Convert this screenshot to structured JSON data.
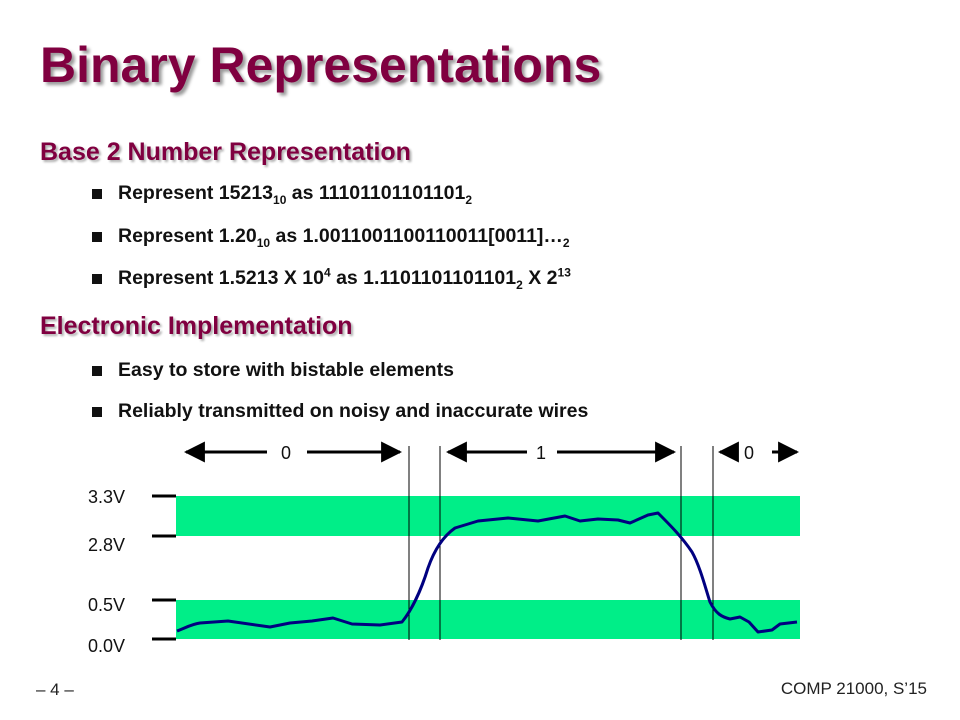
{
  "title": "Binary Representations",
  "sections": [
    {
      "heading": "Base 2 Number Representation",
      "bullets": [
        {
          "parts": {
            "t1": "Represent 15213",
            "s1": "10",
            "t2": " as 11101101101101",
            "s2": "2"
          }
        },
        {
          "parts": {
            "t1": "Represent 1.20",
            "s1": "10",
            "t2": " as 1.0011001100110011[0011]…",
            "s2": "2"
          }
        },
        {
          "parts": {
            "t1": "Represent 1.5213 X 10",
            "p1": "4",
            "t2": "  as 1.1101101101101",
            "s2": "2",
            "t3": " X 2",
            "p2": "13"
          }
        }
      ]
    },
    {
      "heading": "Electronic Implementation",
      "bullets": [
        {
          "text": "Easy to store with bistable elements"
        },
        {
          "text": "Reliably transmitted on noisy and inaccurate wires"
        }
      ]
    }
  ],
  "diagram": {
    "voltage_labels": [
      "3.3V",
      "2.8V",
      "0.5V",
      "0.0V"
    ],
    "bit_labels": [
      "0",
      "1",
      "0"
    ],
    "band_color": "#00ee88",
    "line_color": "#000080"
  },
  "footer": {
    "page": "– 4 –",
    "course": "COMP 21000, S’15"
  }
}
